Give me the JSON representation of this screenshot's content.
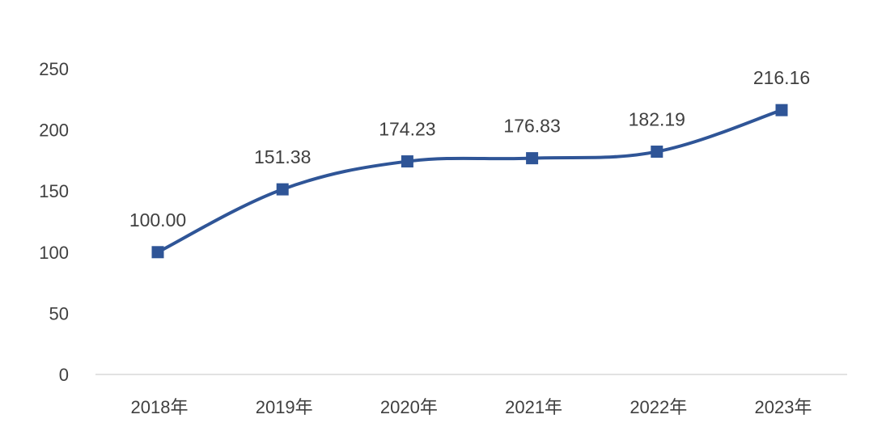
{
  "chart_data": {
    "type": "line",
    "smooth": true,
    "categories": [
      "2018年",
      "2019年",
      "2020年",
      "2021年",
      "2022年",
      "2023年"
    ],
    "series": [
      {
        "values": [
          100.0,
          151.38,
          174.23,
          176.83,
          182.19,
          216.16
        ],
        "data_labels": [
          "100.00",
          "151.38",
          "174.23",
          "176.83",
          "182.19",
          "216.16"
        ],
        "color": "#2F5597",
        "marker": "square"
      }
    ],
    "yticks": [
      "0",
      "50",
      "100",
      "150",
      "200",
      "250"
    ],
    "ylim": [
      0,
      250
    ],
    "grid": false,
    "legend": "none"
  }
}
